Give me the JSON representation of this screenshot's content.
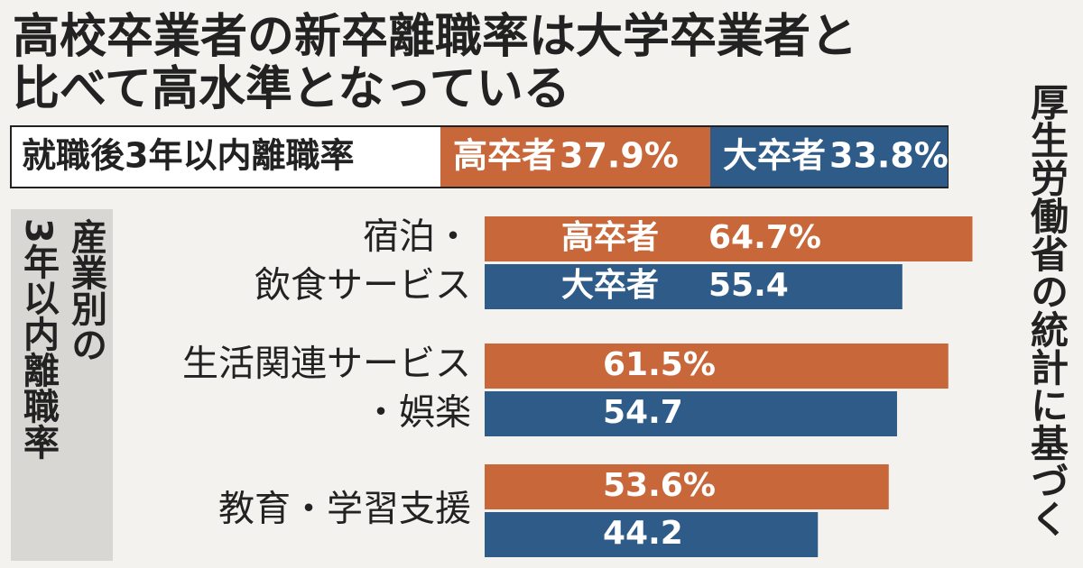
{
  "chart_data": {
    "type": "bar",
    "orientation": "horizontal",
    "title": [
      "高校卒業者の新卒離職率は大学卒業者と",
      "比べて高水準となっている"
    ],
    "summary": {
      "label": "就職後3年以内離職率",
      "items": [
        {
          "name": "高卒者",
          "value": 37.9,
          "value_label": "37.9%",
          "color": "#c8683a"
        },
        {
          "name": "大卒者",
          "value": 33.8,
          "value_label": "33.8%",
          "color": "#2e5b88"
        }
      ]
    },
    "side_label": [
      "産業別の",
      "3年以内離職率"
    ],
    "source": "厚生労働省の統計に基づく",
    "categories": [
      [
        "宿泊・",
        "飲食サービス"
      ],
      [
        "生活関連サービス",
        "・娯楽"
      ],
      [
        "教育・学習支援"
      ]
    ],
    "series": [
      {
        "name": "高卒者",
        "color": "#c8683a",
        "values": [
          64.7,
          61.5,
          53.6
        ],
        "value_labels": [
          "64.7%",
          "61.5%",
          "53.6%"
        ]
      },
      {
        "name": "大卒者",
        "color": "#2e5b88",
        "values": [
          55.4,
          54.7,
          44.2
        ]
      }
    ],
    "xlim": [
      0,
      65
    ]
  }
}
